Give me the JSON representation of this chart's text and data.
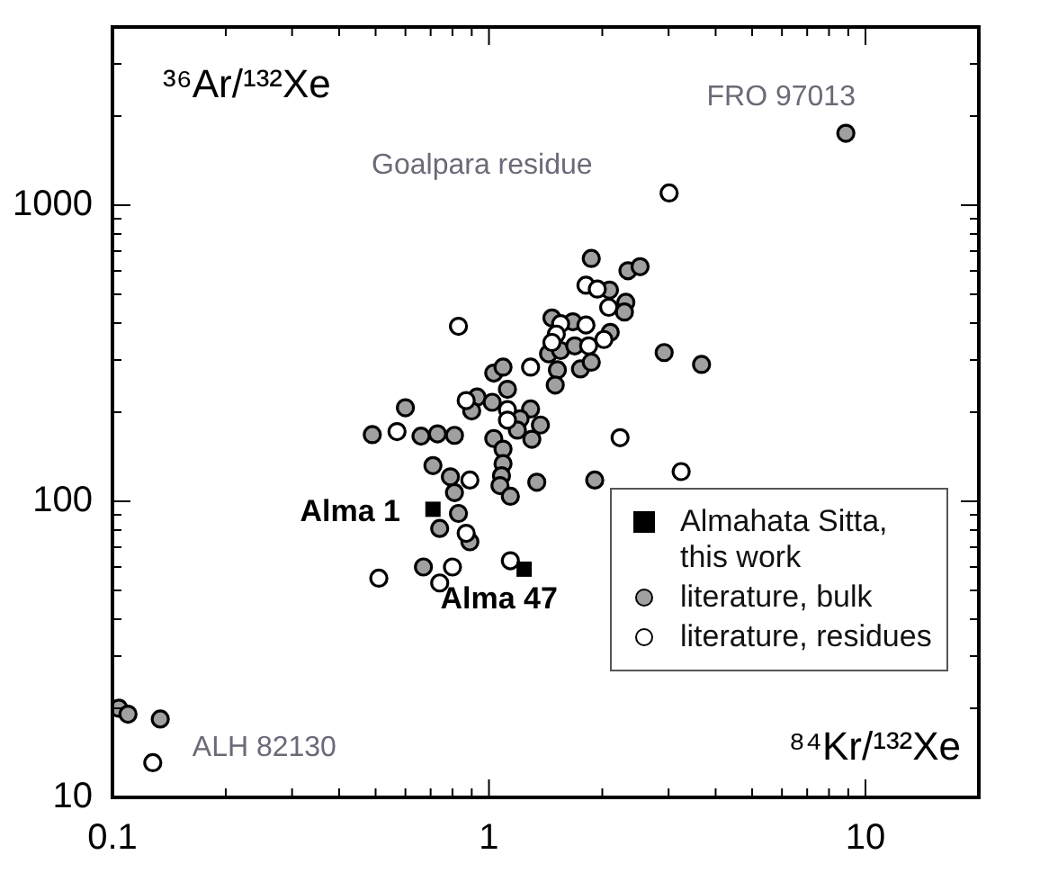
{
  "chart_data": {
    "type": "scatter",
    "log": "xy",
    "xlabel": "⁸⁴Kr/¹³²Xe",
    "ylabel": "³⁶Ar/¹³²Xe",
    "xlim": [
      0.1,
      20
    ],
    "ylim": [
      10,
      4000
    ],
    "xticks": [
      0.1,
      {
        "value": 0.2,
        "label": null
      },
      {
        "value": 0.3,
        "label": null
      },
      {
        "value": 0.4,
        "label": null
      },
      {
        "value": 0.5,
        "label": null
      },
      {
        "value": 0.6,
        "label": null
      },
      {
        "value": 0.7,
        "label": null
      },
      {
        "value": 0.8,
        "label": null
      },
      {
        "value": 0.9,
        "label": null
      },
      1,
      {
        "value": 2,
        "label": null
      },
      {
        "value": 3,
        "label": null
      },
      {
        "value": 4,
        "label": null
      },
      {
        "value": 5,
        "label": null
      },
      {
        "value": 6,
        "label": null
      },
      {
        "value": 7,
        "label": null
      },
      {
        "value": 8,
        "label": null
      },
      {
        "value": 9,
        "label": null
      },
      10,
      {
        "value": 20,
        "label": null
      }
    ],
    "yticks": [
      10,
      {
        "value": 20,
        "label": null
      },
      {
        "value": 30,
        "label": null
      },
      {
        "value": 40,
        "label": null
      },
      {
        "value": 50,
        "label": null
      },
      {
        "value": 60,
        "label": null
      },
      {
        "value": 70,
        "label": null
      },
      {
        "value": 80,
        "label": null
      },
      {
        "value": 90,
        "label": null
      },
      100,
      {
        "value": 200,
        "label": null
      },
      {
        "value": 300,
        "label": null
      },
      {
        "value": 400,
        "label": null
      },
      {
        "value": 500,
        "label": null
      },
      {
        "value": 600,
        "label": null
      },
      {
        "value": 700,
        "label": null
      },
      {
        "value": 800,
        "label": null
      },
      {
        "value": 900,
        "label": null
      },
      1000,
      {
        "value": 2000,
        "label": null
      },
      {
        "value": 3000,
        "label": null
      },
      {
        "value": 4000,
        "label": null
      }
    ],
    "grid": false,
    "legend": "bottom right",
    "series": [
      {
        "name": "Almahata Sitta, this work",
        "color": "#000000",
        "marker": "square",
        "x": [
          0.71,
          1.24
        ],
        "values": [
          94,
          59
        ]
      },
      {
        "name": "literature, bulk",
        "color": "#a0a0a0",
        "marker": "circle",
        "x": [
          8.87,
          0.104,
          0.11,
          0.134,
          1.87,
          2.34,
          2.52,
          2.09,
          2.31,
          2.29,
          1.47,
          1.67,
          2.1,
          1.44,
          1.55,
          1.69,
          2.92,
          3.67,
          1.52,
          1.75,
          1.87,
          1.5,
          1.03,
          1.09,
          1.12,
          0.93,
          1.02,
          0.9,
          1.29,
          1.21,
          1.37,
          1.19,
          1.3,
          1.03,
          0.6,
          0.49,
          0.66,
          0.73,
          0.81,
          0.71,
          0.79,
          0.81,
          0.83,
          0.74,
          0.89,
          0.67,
          1.09,
          1.09,
          1.08,
          1.07,
          1.14,
          1.34,
          1.91
        ],
        "values": [
          1750,
          20,
          19.1,
          18.4,
          661,
          601,
          620,
          517,
          470,
          436,
          416,
          404,
          372,
          315,
          323,
          335,
          318,
          290,
          278,
          280,
          295,
          247,
          271,
          284,
          239,
          225,
          216,
          202,
          205,
          190,
          181,
          174,
          162,
          163,
          207,
          168,
          166,
          169,
          167,
          132,
          121,
          107,
          91,
          81,
          73,
          60,
          150,
          134,
          122,
          113,
          104,
          116,
          118
        ]
      },
      {
        "name": "literature, residues",
        "color": "#ffffff",
        "marker": "circle",
        "x": [
          3.01,
          0.83,
          1.81,
          1.94,
          2.08,
          1.55,
          1.81,
          1.51,
          1.47,
          1.84,
          2.02,
          1.29,
          0.87,
          1.12,
          1.12,
          0.57,
          2.23,
          3.24,
          0.89,
          0.87,
          1.14,
          0.8,
          0.51,
          0.74,
          0.128
        ],
        "values": [
          1100,
          390,
          537,
          521,
          452,
          398,
          394,
          367,
          344,
          335,
          352,
          284,
          219,
          204,
          188,
          172,
          164,
          126,
          118,
          78,
          63,
          60,
          55,
          53,
          13.1
        ]
      }
    ],
    "annotations": [
      {
        "text": "FRO 97013",
        "x": 8.87,
        "y": 1750
      },
      {
        "text": "Goalpara residue",
        "x": 3.01,
        "y": 1100
      },
      {
        "text": "ALH 82130",
        "x": 0.128,
        "y": 13.1
      },
      {
        "text": "Alma 1",
        "x": 0.71,
        "y": 94
      },
      {
        "text": "Alma 47",
        "x": 1.24,
        "y": 59
      }
    ]
  }
}
